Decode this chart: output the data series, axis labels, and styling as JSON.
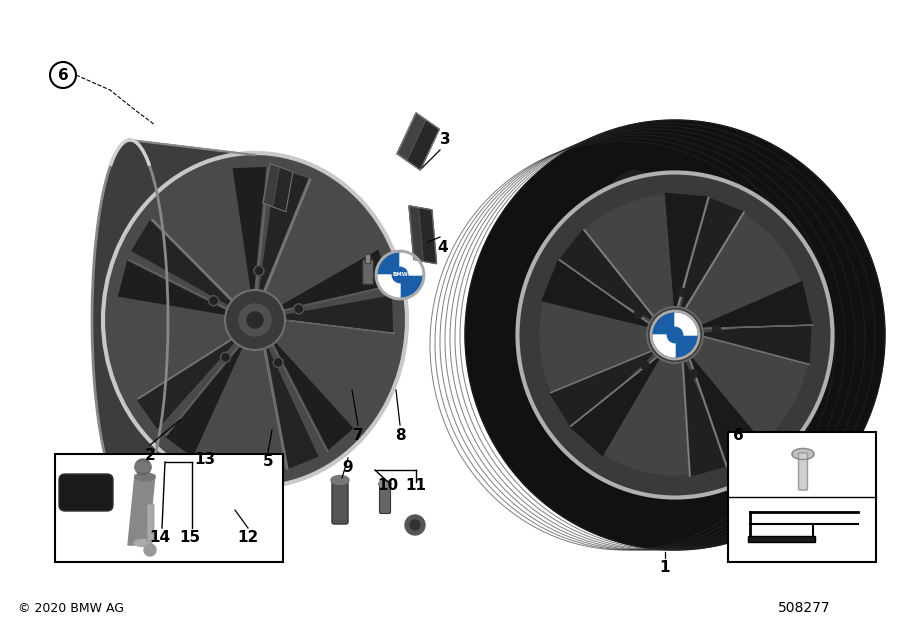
{
  "bg_color": "#ffffff",
  "copyright": "© 2020 BMW AG",
  "diagram_id": "508277",
  "rim_dark": "#4a4a4a",
  "rim_mid": "#606060",
  "rim_light": "#909090",
  "rim_barrel": "#3a3a3a",
  "spoke_dark": "#2e2e2e",
  "spoke_highlight": "#a0a0a0",
  "tire_black": "#111111",
  "tire_dark": "#1e1e1e",
  "hub_color": "#505050",
  "box_edge": "#000000"
}
